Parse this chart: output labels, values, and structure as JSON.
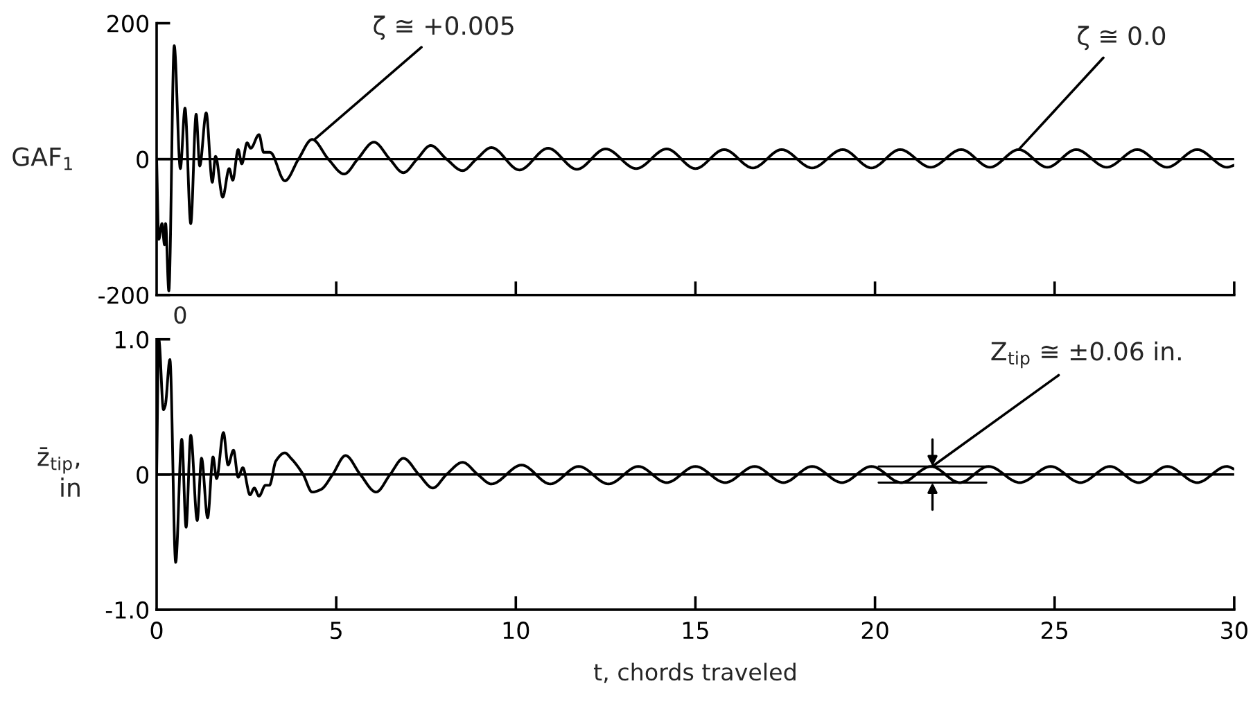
{
  "chart_data": [
    {
      "type": "line",
      "ylabel": "GAF$_{1}$",
      "xlim": [
        0,
        30
      ],
      "ylim": [
        -200,
        200
      ],
      "xticks": [
        0,
        5,
        10,
        15,
        20,
        25,
        30
      ],
      "tick_labels": "y",
      "yticks": [
        {
          "value": -200,
          "label": "-200"
        },
        0,
        200
      ],
      "grid": false,
      "legend": false,
      "ref_lines": [
        {
          "axis": "y",
          "value": 0,
          "label": null,
          "color": "#000000"
        }
      ],
      "annotations": [
        {
          "text": "ζ ≅ +0.005",
          "x": 4.4,
          "y": 29
        },
        {
          "text": "ζ ≅ 0.0",
          "x": 24.0,
          "y": 14
        },
        "0"
      ],
      "series": [
        {
          "color": "#000000",
          "x": [
            0,
            0.06,
            0.15,
            0.22,
            0.25,
            0.34,
            0.49,
            0.66,
            0.79,
            0.95,
            1.1,
            1.2,
            1.38,
            1.55,
            1.64,
            1.84,
            2.02,
            2.12,
            2.27,
            2.37,
            2.52,
            2.62,
            2.85,
            2.98,
            3.16,
            3.57,
            3.95,
            4.33,
            4.78,
            5.22,
            5.6,
            6.05,
            6.49,
            6.87,
            7.25,
            7.63,
            8.07,
            8.52,
            8.9,
            9.32,
            10.1,
            10.9,
            11.7,
            12.5,
            13.35,
            14.2,
            15.0,
            15.8,
            16.6,
            17.4,
            18.25,
            19.1,
            19.9,
            20.7,
            21.55,
            22.4,
            23.2,
            24.0,
            24.8,
            25.6,
            26.45,
            27.3,
            28.13,
            28.97,
            29.8,
            30
          ],
          "values": [
            0,
            -118,
            -95,
            -126,
            -95,
            -194,
            167,
            -14,
            75,
            -95,
            66,
            -10,
            68,
            -34,
            4,
            -56,
            -14,
            -31,
            14,
            -7,
            24,
            16,
            36,
            10,
            10,
            -32,
            0,
            29,
            0,
            -22,
            0,
            25,
            0,
            -20,
            0,
            20,
            0,
            -17,
            0,
            17,
            -16,
            16,
            -15,
            15,
            -14,
            15,
            -14,
            14,
            -13,
            14,
            -13,
            14,
            -13,
            14,
            -12,
            14,
            -12,
            14,
            -12,
            14,
            -12,
            14,
            -12,
            14,
            -12,
            -9
          ]
        }
      ]
    },
    {
      "type": "line",
      "xlabel": "t, chords traveled",
      "ylabel": "z̄$_{tip}$,\nin",
      "xlim": [
        0,
        30
      ],
      "ylim": [
        -1,
        1
      ],
      "xticks": [
        0,
        5,
        10,
        15,
        20,
        25,
        30
      ],
      "yticks": [
        {
          "value": -1,
          "label": "-1.0"
        },
        0,
        {
          "value": 1,
          "label": "1.0"
        }
      ],
      "grid": false,
      "legend": false,
      "ref_lines": [
        {
          "axis": "y",
          "value": 0,
          "label": null,
          "color": "#000000"
        }
      ],
      "annotations": [
        {
          "text": "Z$_{tip}$ ≅ ±0.06 in.",
          "x": 21.6,
          "y": 0.06
        }
      ],
      "series": [
        {
          "color": "#000000",
          "x": [
            0,
            0.06,
            0.19,
            0.24,
            0.37,
            0.53,
            0.7,
            0.82,
            0.95,
            1.13,
            1.25,
            1.42,
            1.57,
            1.67,
            1.86,
            1.99,
            2.14,
            2.27,
            2.4,
            2.6,
            2.72,
            2.85,
            3.03,
            3.14,
            3.32,
            3.57,
            3.74,
            4.08,
            4.33,
            4.58,
            4.9,
            5.26,
            5.67,
            6.11,
            6.5,
            6.87,
            7.3,
            7.69,
            8.07,
            8.52,
            8.94,
            9.32,
            10.16,
            10.96,
            11.75,
            12.58,
            13.41,
            14.2,
            15.0,
            15.83,
            16.65,
            17.45,
            18.25,
            19.08,
            19.9,
            20.73,
            21.56,
            22.36,
            23.16,
            24.03,
            24.89,
            25.72,
            26.54,
            27.34,
            28.14,
            28.97,
            29.79,
            30
          ],
          "values": [
            0,
            1.0,
            0.48,
            0.51,
            0.85,
            -0.65,
            0.26,
            -0.39,
            0.29,
            -0.34,
            0.12,
            -0.32,
            0.13,
            -0.03,
            0.31,
            0.07,
            0.18,
            -0.02,
            0.05,
            -0.15,
            -0.1,
            -0.16,
            -0.08,
            -0.08,
            0.1,
            0.16,
            0.12,
            0,
            -0.13,
            -0.11,
            0,
            0.14,
            0,
            -0.13,
            0,
            0.12,
            0,
            -0.1,
            0,
            0.09,
            0,
            -0.07,
            0.07,
            -0.07,
            0.06,
            -0.07,
            0.06,
            -0.06,
            0.06,
            -0.06,
            0.06,
            -0.06,
            0.06,
            -0.06,
            0.06,
            -0.06,
            0.06,
            -0.06,
            0.06,
            -0.06,
            0.06,
            -0.06,
            0.06,
            -0.06,
            0.06,
            -0.06,
            0.06,
            0.04
          ]
        }
      ]
    }
  ]
}
